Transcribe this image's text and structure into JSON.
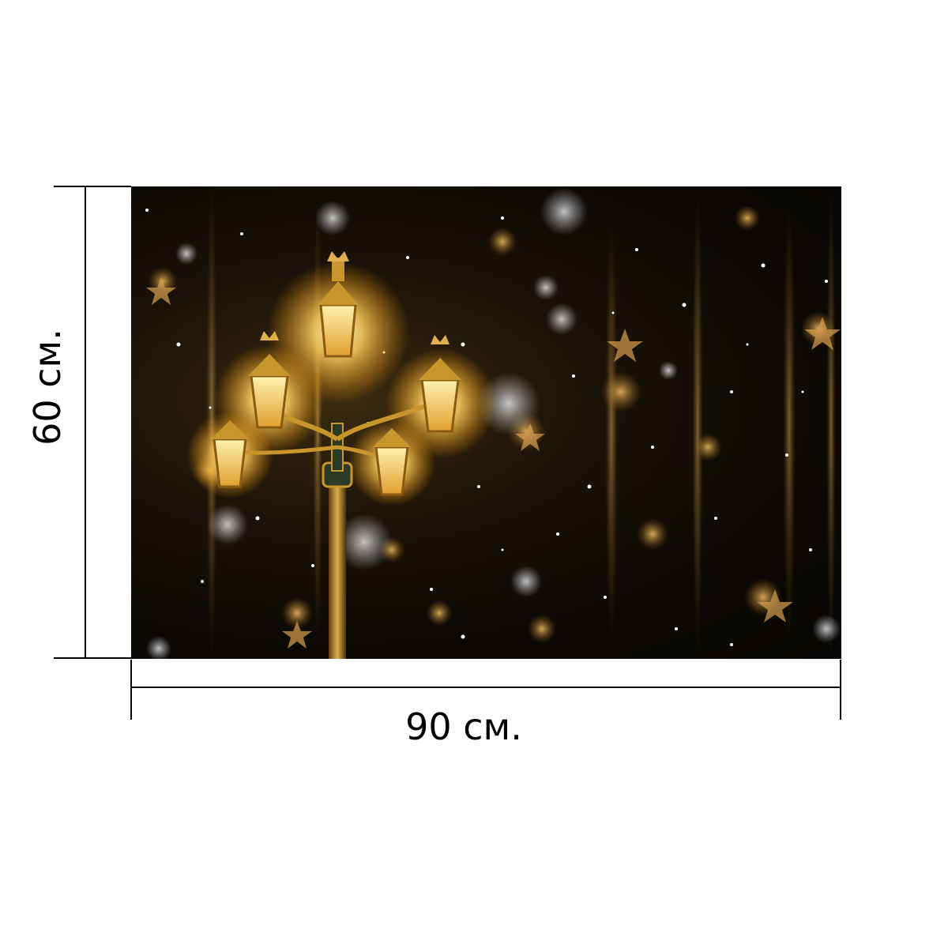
{
  "product": {
    "dimensions": {
      "height_label": "60 см.",
      "width_label": "90 см."
    },
    "photo": {
      "subject": "ornate-street-lamp-with-bokeh",
      "colors": {
        "background": "#0c0905",
        "glow": "#ffd878",
        "gold": "#c9962e",
        "snow": "#ffffff"
      }
    }
  }
}
